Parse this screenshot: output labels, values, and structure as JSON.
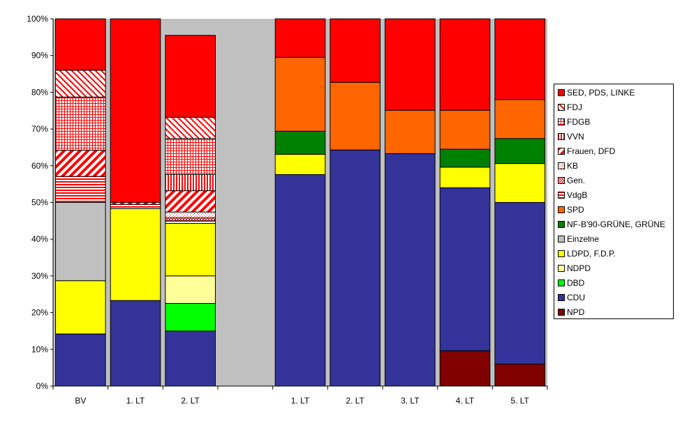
{
  "chart_data": {
    "type": "stacked-bar-100",
    "title": "",
    "xlabel": "",
    "ylabel": "",
    "ylim": [
      0,
      100
    ],
    "y_ticks": [
      "0%",
      "10%",
      "20%",
      "30%",
      "40%",
      "50%",
      "60%",
      "70%",
      "80%",
      "90%",
      "100%"
    ],
    "grid": false,
    "plot_background": "#c0c0c0",
    "legend_position": "right",
    "categories": [
      "BV",
      "1. LT",
      "2. LT",
      "",
      "1. LT",
      "2. LT",
      "3. LT",
      "4. LT",
      "5. LT"
    ],
    "series": [
      {
        "name": "NPD",
        "color": "#800000",
        "pattern": "solid",
        "values": [
          0,
          0,
          0,
          0,
          0,
          0,
          0,
          9.6,
          6.0
        ]
      },
      {
        "name": "CDU",
        "color": "#333399",
        "pattern": "solid",
        "values": [
          14.2,
          23.3,
          15.0,
          0,
          57.6,
          64.3,
          63.3,
          44.4,
          44.0
        ]
      },
      {
        "name": "DBD",
        "color": "#00ff00",
        "pattern": "solid",
        "values": [
          0,
          0,
          7.5,
          0,
          0,
          0,
          0,
          0,
          0
        ]
      },
      {
        "name": "NDPD",
        "color": "#ffff99",
        "pattern": "solid",
        "values": [
          0,
          0,
          7.5,
          0,
          0,
          0,
          0,
          0,
          0
        ]
      },
      {
        "name": "LDPD, F.D.P.",
        "color": "#ffff00",
        "pattern": "solid",
        "values": [
          14.5,
          25.0,
          14.3,
          0,
          5.5,
          0,
          0,
          5.6,
          10.6
        ]
      },
      {
        "name": "Einzelne",
        "color": "#c0c0c0",
        "pattern": "solid",
        "values": [
          21.3,
          0,
          0,
          0,
          0,
          0,
          0,
          0,
          0
        ]
      },
      {
        "name": "NF-B'90-GRÜNE, GRÜNE",
        "color": "#008000",
        "pattern": "solid",
        "values": [
          0,
          0,
          0,
          0,
          6.3,
          0,
          0,
          4.9,
          6.8
        ]
      },
      {
        "name": "SPD",
        "color": "#ff6600",
        "pattern": "solid",
        "values": [
          0,
          0,
          0,
          0,
          20.1,
          18.4,
          11.8,
          10.6,
          10.6
        ]
      },
      {
        "name": "VdgB",
        "color": "#ff0000",
        "pattern": "hlines",
        "values": [
          7.1,
          1.2,
          0.7,
          0,
          0,
          0,
          0,
          0,
          0
        ]
      },
      {
        "name": "Gen.",
        "color": "#ff0000",
        "pattern": "dots",
        "values": [
          0,
          0,
          0.8,
          0,
          0,
          0,
          0,
          0,
          0
        ]
      },
      {
        "name": "KB",
        "color": "#ff0000",
        "pattern": "sparsedots",
        "values": [
          0,
          0,
          1.6,
          0,
          0,
          0,
          0,
          0,
          0
        ]
      },
      {
        "name": "Frauen, DFD",
        "color": "#ff0000",
        "pattern": "updiag",
        "values": [
          7.1,
          0.5,
          5.8,
          0,
          0,
          0,
          0,
          0,
          0
        ]
      },
      {
        "name": "VVN",
        "color": "#ff0000",
        "pattern": "vlines",
        "values": [
          0,
          0,
          4.4,
          0,
          0,
          0,
          0,
          0,
          0
        ]
      },
      {
        "name": "FDGB",
        "color": "#ff0000",
        "pattern": "grid",
        "values": [
          14.5,
          0,
          9.8,
          0,
          0,
          0,
          0,
          0,
          0
        ]
      },
      {
        "name": "FDJ",
        "color": "#ff0000",
        "pattern": "downdiag",
        "values": [
          7.3,
          0,
          5.8,
          0,
          0,
          0,
          0,
          0,
          0
        ]
      },
      {
        "name": "SED, PDS, LINKE",
        "color": "#ff0000",
        "pattern": "solid",
        "values": [
          14.0,
          50.0,
          22.3,
          0,
          10.5,
          17.3,
          24.9,
          24.9,
          22.0
        ]
      }
    ]
  }
}
